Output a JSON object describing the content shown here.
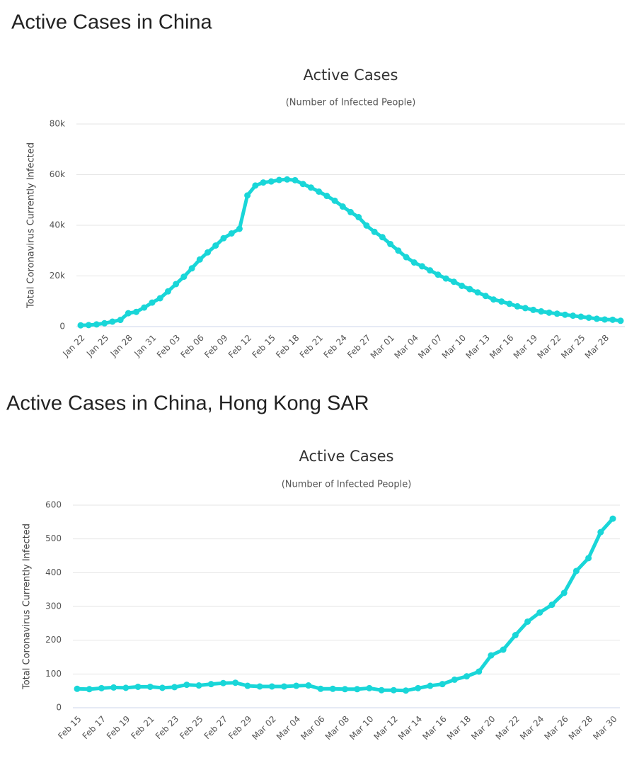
{
  "chart_data": [
    {
      "type": "line",
      "heading": "Active Cases in China",
      "title": "Active Cases",
      "subtitle": "(Number of Infected People)",
      "y_label": "Total Coronavirus Currently Infected",
      "categories": [
        "Jan 22",
        null,
        null,
        "Jan 25",
        null,
        null,
        "Jan 28",
        null,
        null,
        "Jan 31",
        null,
        null,
        "Feb 03",
        null,
        null,
        "Feb 06",
        null,
        null,
        "Feb 09",
        null,
        null,
        "Feb 12",
        null,
        null,
        "Feb 15",
        null,
        null,
        "Feb 18",
        null,
        null,
        "Feb 21",
        null,
        null,
        "Feb 24",
        null,
        null,
        "Feb 27",
        null,
        null,
        "Mar 01",
        null,
        null,
        "Mar 04",
        null,
        null,
        "Mar 07",
        null,
        null,
        "Mar 10",
        null,
        null,
        "Mar 13",
        null,
        null,
        "Mar 16",
        null,
        null,
        "Mar 19",
        null,
        null,
        "Mar 22",
        null,
        null,
        "Mar 25",
        null,
        null,
        "Mar 28",
        null,
        null
      ],
      "series": [
        {
          "name": "Currently Infected",
          "color": "#19d6d8",
          "values": [
            503,
            595,
            858,
            1325,
            1970,
            2623,
            5288,
            5806,
            7516,
            9478,
            11200,
            13900,
            16800,
            19700,
            23000,
            26500,
            29300,
            32000,
            34900,
            36800,
            38600,
            51800,
            55700,
            56900,
            57300,
            57900,
            58100,
            57800,
            56300,
            54900,
            53300,
            51600,
            49700,
            47400,
            45200,
            43200,
            39900,
            37400,
            35300,
            32600,
            30000,
            27400,
            25300,
            23800,
            22200,
            20500,
            19000,
            17700,
            16100,
            14800,
            13500,
            12100,
            10700,
            9900,
            9000,
            8000,
            7300,
            6600,
            6000,
            5500,
            5100,
            4700,
            4300,
            3900,
            3500,
            3100,
            2800,
            2700,
            2300
          ]
        }
      ],
      "ylim": [
        0,
        80000
      ],
      "yticks": [
        0,
        {
          "value": 20000,
          "label": "20k"
        },
        {
          "value": 40000,
          "label": "40k"
        },
        {
          "value": 60000,
          "label": "60k"
        },
        {
          "value": 80000,
          "label": "80k"
        }
      ],
      "grid": true
    },
    {
      "type": "line",
      "heading": "Active Cases in China, Hong Kong SAR",
      "title": "Active Cases",
      "subtitle": "(Number of Infected People)",
      "y_label": "Total Coronavirus Currently Infected",
      "categories": [
        "Feb 15",
        null,
        "Feb 17",
        null,
        "Feb 19",
        null,
        "Feb 21",
        null,
        "Feb 23",
        null,
        "Feb 25",
        null,
        "Feb 27",
        null,
        "Feb 29",
        null,
        "Mar 02",
        null,
        "Mar 04",
        null,
        "Mar 06",
        null,
        "Mar 08",
        null,
        "Mar 10",
        null,
        "Mar 12",
        null,
        "Mar 14",
        null,
        "Mar 16",
        null,
        "Mar 18",
        null,
        "Mar 20",
        null,
        "Mar 22",
        null,
        "Mar 24",
        null,
        "Mar 26",
        null,
        "Mar 28",
        null,
        "Mar 30"
      ],
      "series": [
        {
          "name": "Currently Infected",
          "color": "#19d6d8",
          "values": [
            56,
            55,
            58,
            60,
            59,
            62,
            62,
            59,
            61,
            68,
            66,
            70,
            73,
            74,
            65,
            63,
            63,
            63,
            65,
            66,
            56,
            56,
            55,
            55,
            58,
            52,
            52,
            51,
            58,
            65,
            70,
            83,
            93,
            107,
            155,
            172,
            215,
            255,
            282,
            305,
            340,
            405,
            443,
            520,
            560
          ]
        }
      ],
      "ylim": [
        0,
        600
      ],
      "yticks": [
        0,
        100,
        200,
        300,
        400,
        500,
        600
      ],
      "grid": true
    }
  ]
}
